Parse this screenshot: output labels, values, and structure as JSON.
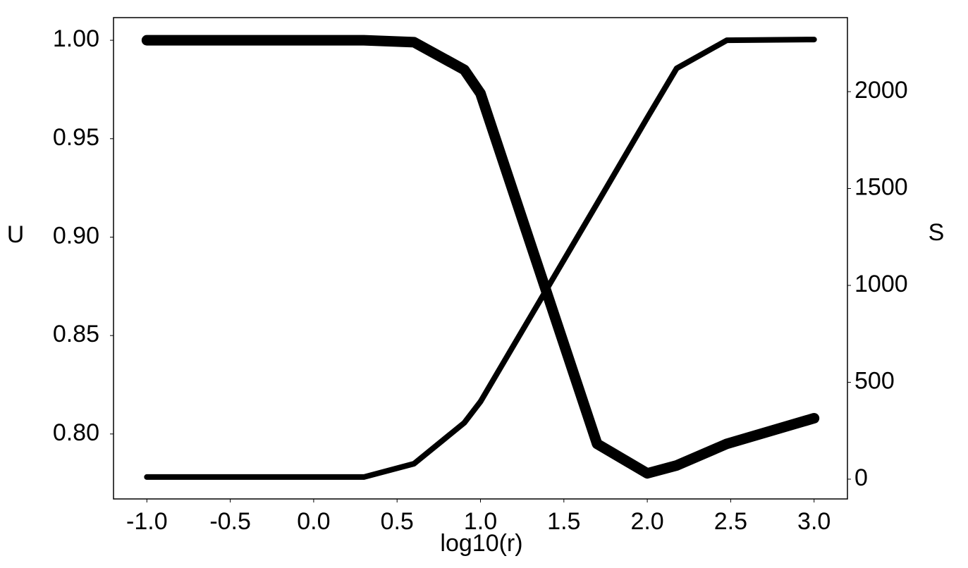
{
  "chart_data": {
    "type": "line",
    "x_label": "log10(r)",
    "y_label": "U",
    "y2_label": "S",
    "x": [
      -1.0,
      0.301,
      0.602,
      0.903,
      1.0,
      1.699,
      2.0,
      2.176,
      2.477,
      3.0
    ],
    "series": [
      {
        "color": "#000000",
        "values": [
          1.0,
          1.0,
          0.999,
          0.985,
          0.973,
          0.795,
          0.78,
          0.784,
          0.795,
          0.808
        ]
      },
      {
        "color": "#000000",
        "axis": "y2",
        "values": [
          11,
          11,
          80,
          291,
          400,
          1422,
          1865,
          2120,
          2265,
          2269
        ]
      }
    ],
    "xlim": [
      -1.2,
      3.2
    ],
    "xticks": [
      {
        "value": -1.0,
        "label": "-1.0"
      },
      {
        "value": -0.5,
        "label": "-0.5"
      },
      {
        "value": 0.0,
        "label": "0.0"
      },
      {
        "value": 0.5,
        "label": "0.5"
      },
      {
        "value": 1.0,
        "label": "1.0"
      },
      {
        "value": 1.5,
        "label": "1.5"
      },
      {
        "value": 2.0,
        "label": "2.0"
      },
      {
        "value": 2.5,
        "label": "2.5"
      },
      {
        "value": 3.0,
        "label": "3.0"
      }
    ],
    "ylim": [
      0.767,
      1.0115
    ],
    "yticks": [
      {
        "value": 0.8,
        "label": "0.80"
      },
      {
        "value": 0.85,
        "label": "0.85"
      },
      {
        "value": 0.9,
        "label": "0.90"
      },
      {
        "value": 0.95,
        "label": "0.95"
      },
      {
        "value": 1.0,
        "label": "1.00"
      }
    ],
    "y2lim": [
      -102,
      2382
    ],
    "y2ticks": [
      0,
      500,
      1000,
      1500,
      2000
    ]
  }
}
